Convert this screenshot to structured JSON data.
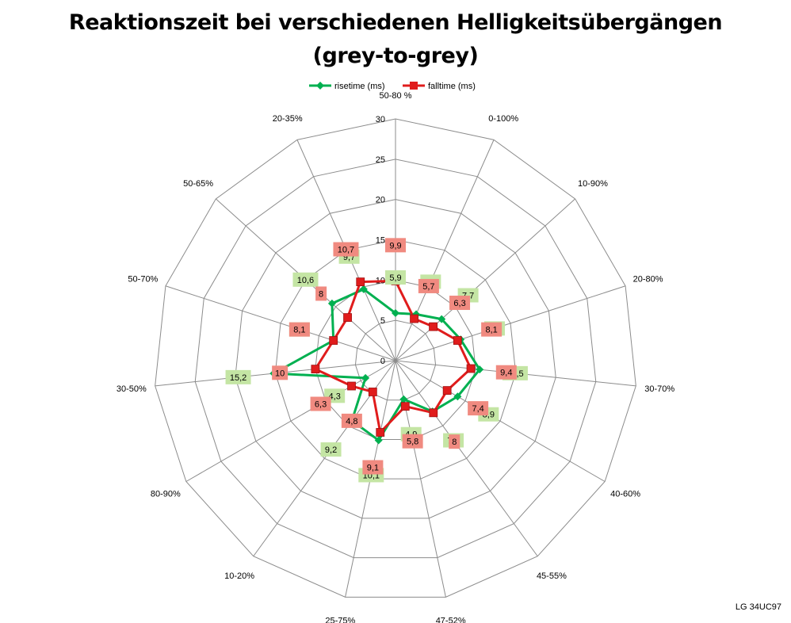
{
  "chart_data": {
    "type": "radar",
    "title": "Reaktionszeit bei verschiedenen Helligkeitsübergängen",
    "subtitle": "(grey-to-grey)",
    "categories": [
      "50-80 %",
      "0-100%",
      "10-90%",
      "20-80%",
      "30-70%",
      "40-60%",
      "45-55%",
      "47-52%",
      "25-75%",
      "10-20%",
      "80-90%",
      "30-50%",
      "50-70%",
      "50-65%",
      "20-35%"
    ],
    "rlim": [
      0,
      30
    ],
    "rticks": [
      "0",
      "5",
      "10",
      "15",
      "20",
      "25",
      "30"
    ],
    "grid": true,
    "legend_position": "top",
    "series": [
      {
        "name": "risetime (ms)",
        "color": "#00b050",
        "label_bg": "#c4e5a4",
        "marker": "diamond",
        "values": [
          5.9,
          6.3,
          7.7,
          8.5,
          10.5,
          8.9,
          7.8,
          4.9,
          10.1,
          9.2,
          4.3,
          15.2,
          8.1,
          10.6,
          9.7
        ],
        "labels": [
          "5,9",
          "6,3",
          "7,7",
          "8,5",
          "10,5",
          "8,9",
          "7,8",
          "4,9",
          "10,1",
          "9,2",
          "4,3",
          "15,2",
          "8,1",
          "10,6",
          "9,7"
        ]
      },
      {
        "name": "falltime (ms)",
        "color": "#e01c1c",
        "label_bg": "#f08a80",
        "marker": "square",
        "values": [
          9.9,
          5.7,
          6.3,
          8.1,
          9.4,
          7.4,
          8,
          5.8,
          9.1,
          4.8,
          6.3,
          10,
          8.1,
          8,
          10.7
        ],
        "labels": [
          "9,9",
          "5,7",
          "6,3",
          "8,1",
          "9,4",
          "7,4",
          "8",
          "5,8",
          "9,1",
          "4,8",
          "6,3",
          "10",
          "8,1",
          "8",
          "10,7"
        ]
      }
    ]
  },
  "watermark": "LG 34UC97"
}
